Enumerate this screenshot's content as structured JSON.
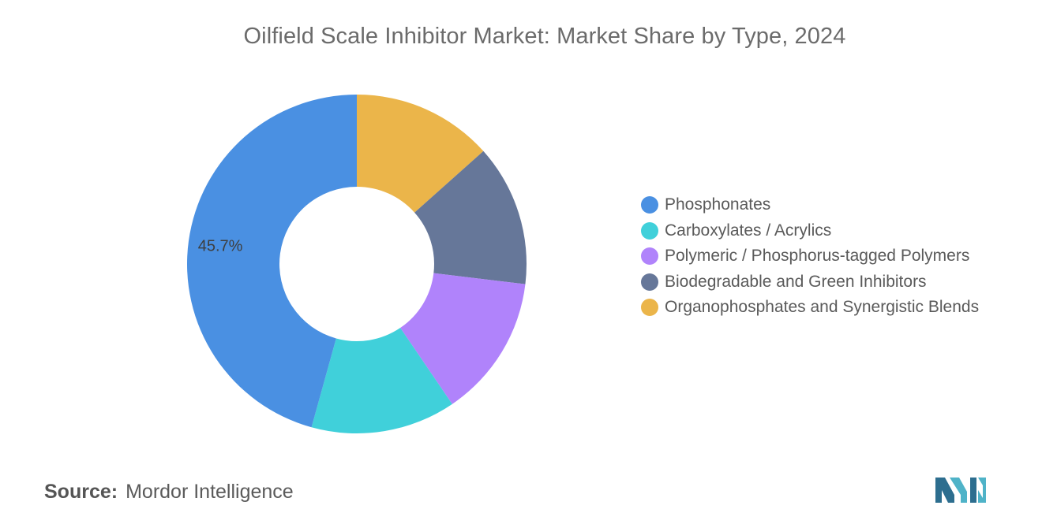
{
  "chart_data": {
    "type": "pie",
    "title": "Oilfield Scale Inhibitor Market: Market Share by Type, 2024",
    "categories": [
      "Phosphonates",
      "Carboxylates / Acrylics",
      "Polymeric / Phosphorus-tagged Polymers",
      "Biodegradable and Green Inhibitors",
      "Organophosphates and Synergistic Blends"
    ],
    "values": [
      45.7,
      13.8,
      13.6,
      13.5,
      13.4
    ],
    "colors": [
      "#4a90e2",
      "#40d0da",
      "#b083fb",
      "#667799",
      "#ebb54a"
    ],
    "data_labels": [
      "45.7%",
      "",
      "",
      "",
      ""
    ],
    "donut": true,
    "legend_position": "right"
  },
  "source": {
    "label": "Source:",
    "text": "Mordor Intelligence"
  },
  "logo": {
    "icon": "mordor-intelligence-logo-icon",
    "colors": [
      "#2d6e8f",
      "#4fb3c8"
    ]
  }
}
